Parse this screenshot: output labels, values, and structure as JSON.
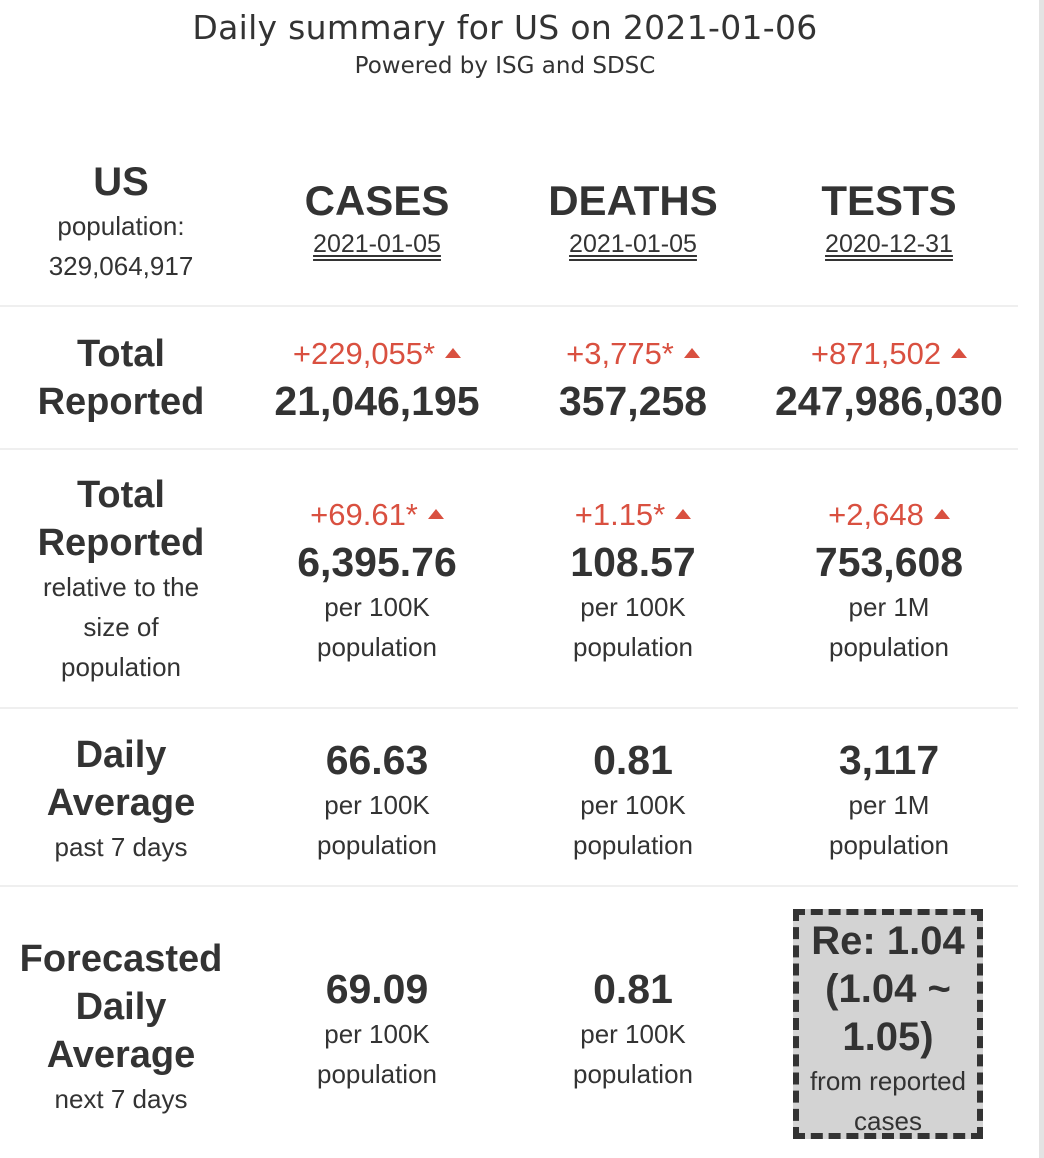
{
  "header": {
    "title": "Daily summary for US on 2021-01-06",
    "subtitle": "Powered by ISG and SDSC"
  },
  "region": {
    "name": "US",
    "population_label": "population:",
    "population_value": "329,064,917"
  },
  "columns": [
    {
      "label": "CASES",
      "date": "2021-01-05"
    },
    {
      "label": "DEATHS",
      "date": "2021-01-05"
    },
    {
      "label": "TESTS",
      "date": "2020-12-31"
    }
  ],
  "rows": {
    "total": {
      "label1": "Total",
      "label2": "Reported",
      "cells": [
        {
          "delta": "+229,055*",
          "value": "21,046,195"
        },
        {
          "delta": "+3,775*",
          "value": "357,258"
        },
        {
          "delta": "+871,502",
          "value": "247,986,030"
        }
      ]
    },
    "relative": {
      "label1": "Total",
      "label2": "Reported",
      "sub1": "relative to the",
      "sub2": "size of",
      "sub3": "population",
      "cells": [
        {
          "delta": "+69.61*",
          "value": "6,395.76",
          "unit1": "per 100K",
          "unit2": "population"
        },
        {
          "delta": "+1.15*",
          "value": "108.57",
          "unit1": "per 100K",
          "unit2": "population"
        },
        {
          "delta": "+2,648",
          "value": "753,608",
          "unit1": "per 1M",
          "unit2": "population"
        }
      ]
    },
    "daily_avg": {
      "label1": "Daily",
      "label2": "Average",
      "sub": "past 7 days",
      "cells": [
        {
          "value": "66.63",
          "unit1": "per 100K",
          "unit2": "population"
        },
        {
          "value": "0.81",
          "unit1": "per 100K",
          "unit2": "population"
        },
        {
          "value": "3,117",
          "unit1": "per 1M",
          "unit2": "population"
        }
      ]
    },
    "forecast": {
      "label1": "Forecasted",
      "label2": "Daily",
      "label3": "Average",
      "sub": "next 7 days",
      "cells": [
        {
          "value": "69.09",
          "unit1": "per 100K",
          "unit2": "population"
        },
        {
          "value": "0.81",
          "unit1": "per 100K",
          "unit2": "population"
        }
      ],
      "re": {
        "line1": "Re: 1.04",
        "line2": "(1.04 ~",
        "line3": "1.05)",
        "note1": "from reported",
        "note2": "cases"
      }
    }
  },
  "colors": {
    "increase": "#d95040",
    "text": "#333333",
    "re_box_bg": "#d3d3d3"
  },
  "icons": {
    "increase": "triangle-up-icon"
  }
}
